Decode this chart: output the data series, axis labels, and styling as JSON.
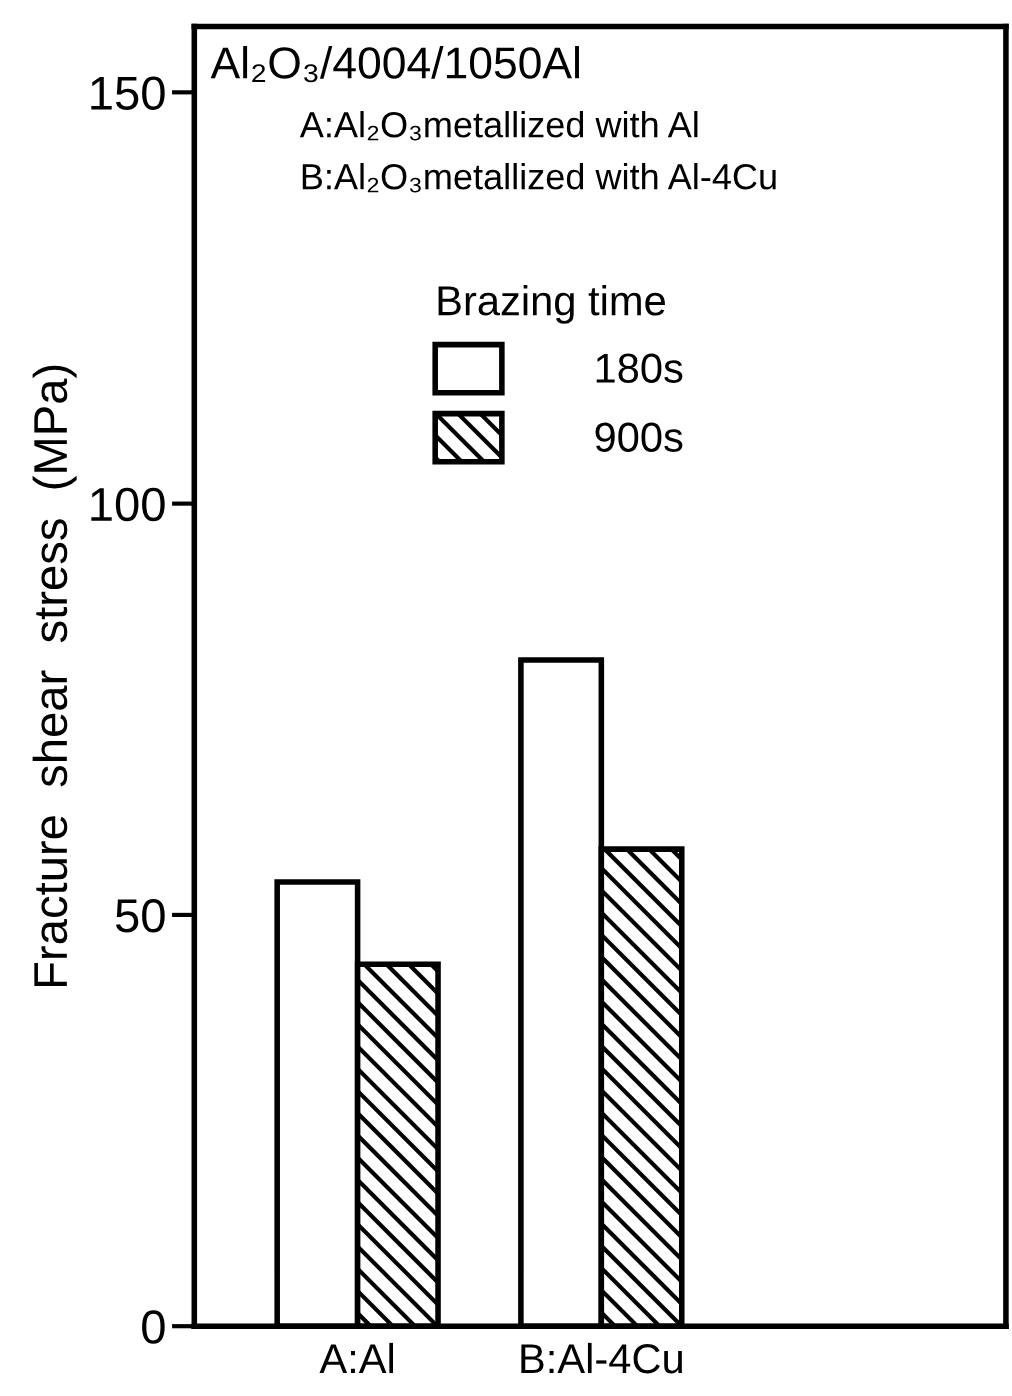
{
  "chart_data": {
    "type": "bar",
    "ylabel": "Fracture  shear  stress  (MPa)",
    "legend_title": "Brazing time",
    "annotations": [
      "Al₂O₃/4004/1050Al",
      "A:Al₂O₃metallized with Al",
      "B:Al₂O₃metallized with Al-4Cu"
    ],
    "categories": [
      "A:Al",
      "B:Al-4Cu"
    ],
    "series": [
      {
        "name": "180s",
        "color": "#ffffff",
        "values": [
          54,
          81
        ]
      },
      {
        "name": "900s",
        "color": "#000000",
        "values": [
          44,
          58
        ]
      }
    ],
    "ylim": [
      0,
      158
    ],
    "yticks": [
      0,
      50,
      100,
      150
    ],
    "grid": false,
    "legend": "top"
  }
}
